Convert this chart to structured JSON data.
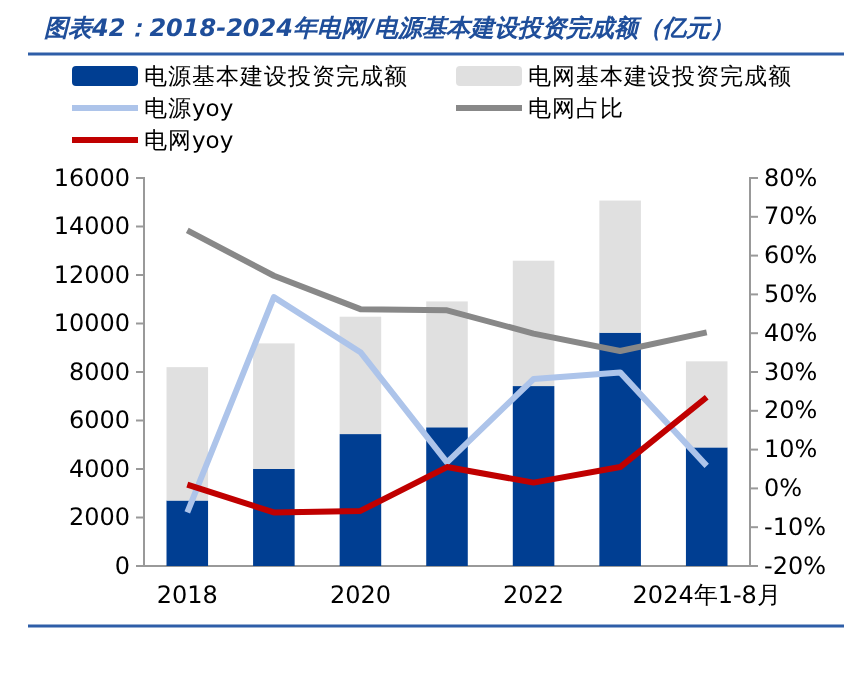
{
  "chart_data": {
    "type": "bar",
    "title": "图表42：2018-2024年电网/电源基本建设投资完成额（亿元）",
    "categories": [
      "2018",
      null,
      "2020",
      null,
      "2022",
      null,
      "2024年1-8月"
    ],
    "stacked": true,
    "series": [
      {
        "name": "电源基本建设投资完成额",
        "color": "#003e92",
        "values": [
          2700,
          4000,
          5440,
          5720,
          7420,
          9620,
          4890
        ]
      },
      {
        "name": "电网基本建设投资完成额",
        "color": "#e0e0e0",
        "values": [
          5500,
          5180,
          4840,
          5190,
          5170,
          5450,
          3550
        ]
      },
      {
        "name": "电源yoy",
        "type": "line",
        "axis": "y2",
        "color": "#adc4ea",
        "values": [
          -6.2,
          49.3,
          35.1,
          6.7,
          28.2,
          29.9,
          5.8
        ]
      },
      {
        "name": "电网占比",
        "type": "line",
        "axis": "y2",
        "color": "#888888",
        "values": [
          66.5,
          54.8,
          46.2,
          45.9,
          39.9,
          35.4,
          40.2
        ]
      },
      {
        "name": "电网yoy",
        "type": "line",
        "axis": "y2",
        "color": "#c00000",
        "values": [
          1.0,
          -6.2,
          -5.8,
          5.5,
          1.5,
          5.5,
          23.5
        ]
      }
    ],
    "ylim": [
      0,
      16000
    ],
    "yticks": [
      0,
      2000,
      4000,
      6000,
      8000,
      10000,
      12000,
      14000,
      16000
    ],
    "y2lim": [
      -20,
      80
    ],
    "y2ticks": [
      {
        "value": -20,
        "label": "-20%"
      },
      {
        "value": -10,
        "label": "-10%"
      },
      {
        "value": 0,
        "label": "0%"
      },
      {
        "value": 10,
        "label": "10%"
      },
      {
        "value": 20,
        "label": "20%"
      },
      {
        "value": 30,
        "label": "30%"
      },
      {
        "value": 40,
        "label": "40%"
      },
      {
        "value": 50,
        "label": "50%"
      },
      {
        "value": 60,
        "label": "60%"
      },
      {
        "value": 70,
        "label": "70%"
      },
      {
        "value": 80,
        "label": "80%"
      }
    ],
    "grid": false,
    "legend": "top",
    "marker": "none"
  }
}
